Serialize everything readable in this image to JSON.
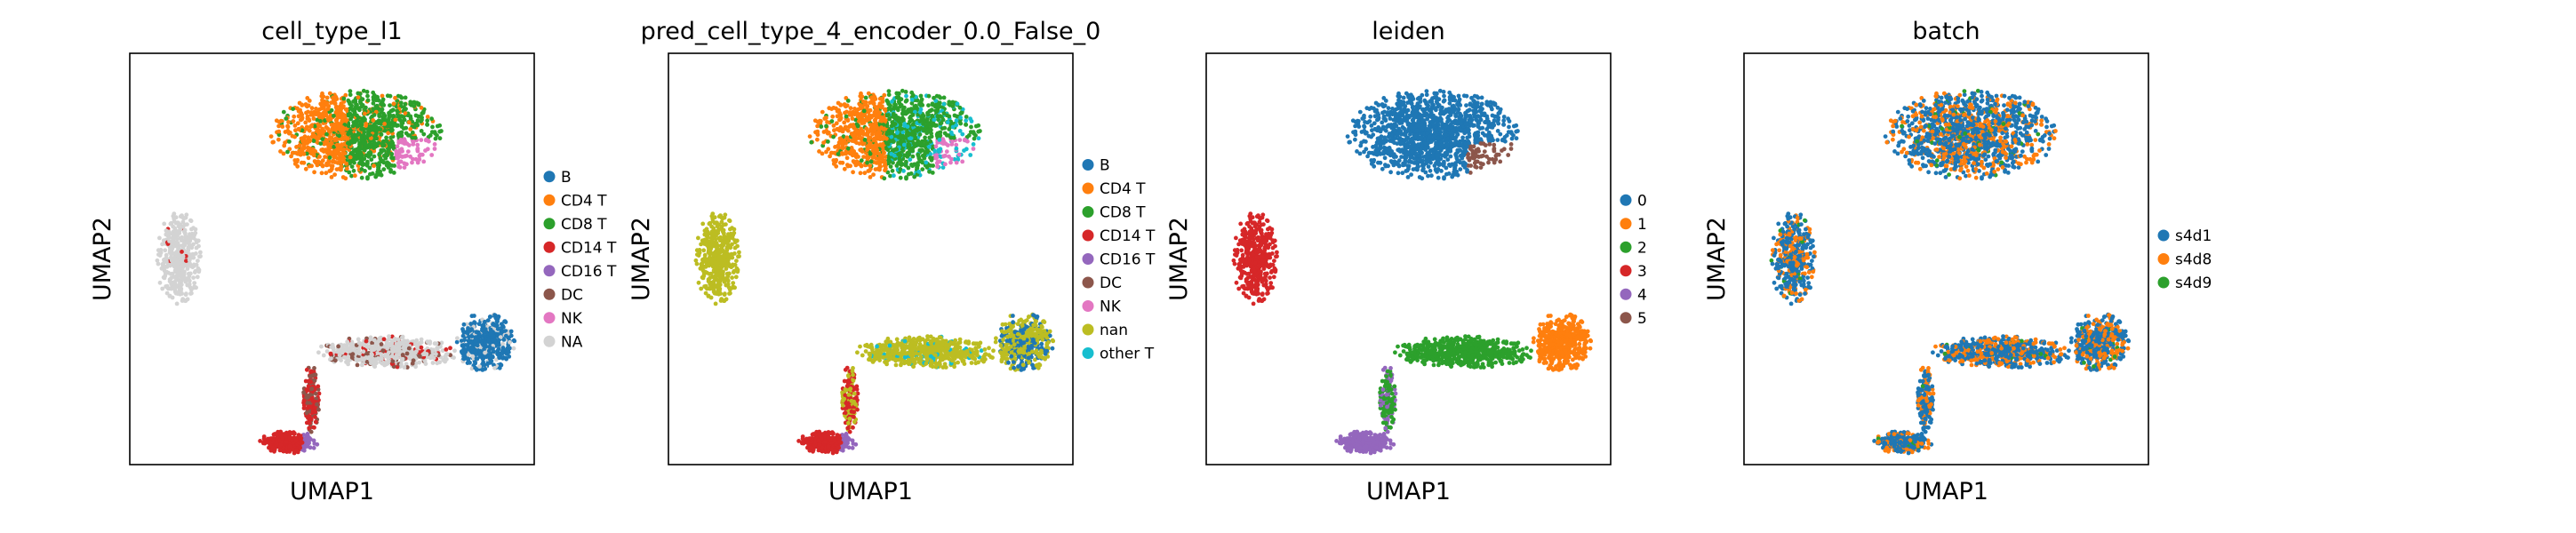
{
  "chart_data": [
    {
      "type": "scatter",
      "title": "cell_type_l1",
      "xlabel": "UMAP1",
      "ylabel": "UMAP2",
      "grid": false,
      "legend_placement": "right",
      "legend": [
        {
          "label": "B",
          "color": "#1f77b4"
        },
        {
          "label": "CD4 T",
          "color": "#ff7f0e"
        },
        {
          "label": "CD8 T",
          "color": "#2ca02c"
        },
        {
          "label": "CD14 T",
          "color": "#d62728"
        },
        {
          "label": "CD16 T",
          "color": "#9467bd"
        },
        {
          "label": "DC",
          "color": "#8c564b"
        },
        {
          "label": "NK",
          "color": "#e377c2"
        },
        {
          "label": "NA",
          "color": "#d3d3d3"
        }
      ]
    },
    {
      "type": "scatter",
      "title": "pred_cell_type_4_encoder_0.0_False_0",
      "xlabel": "UMAP1",
      "ylabel": "UMAP2",
      "grid": false,
      "legend_placement": "right",
      "legend": [
        {
          "label": "B",
          "color": "#1f77b4"
        },
        {
          "label": "CD4 T",
          "color": "#ff7f0e"
        },
        {
          "label": "CD8 T",
          "color": "#2ca02c"
        },
        {
          "label": "CD14 T",
          "color": "#d62728"
        },
        {
          "label": "CD16 T",
          "color": "#9467bd"
        },
        {
          "label": "DC",
          "color": "#8c564b"
        },
        {
          "label": "NK",
          "color": "#e377c2"
        },
        {
          "label": "nan",
          "color": "#bcbd22"
        },
        {
          "label": "other T",
          "color": "#17becf"
        }
      ]
    },
    {
      "type": "scatter",
      "title": "leiden",
      "xlabel": "UMAP1",
      "ylabel": "UMAP2",
      "grid": false,
      "legend_placement": "right",
      "legend": [
        {
          "label": "0",
          "color": "#1f77b4"
        },
        {
          "label": "1",
          "color": "#ff7f0e"
        },
        {
          "label": "2",
          "color": "#2ca02c"
        },
        {
          "label": "3",
          "color": "#d62728"
        },
        {
          "label": "4",
          "color": "#9467bd"
        },
        {
          "label": "5",
          "color": "#8c564b"
        }
      ]
    },
    {
      "type": "scatter",
      "title": "batch",
      "xlabel": "UMAP1",
      "ylabel": "UMAP2",
      "grid": false,
      "legend_placement": "right",
      "legend": [
        {
          "label": "s4d1",
          "color": "#1f77b4"
        },
        {
          "label": "s4d8",
          "color": "#ff7f0e"
        },
        {
          "label": "s4d9",
          "color": "#2ca02c"
        }
      ]
    }
  ]
}
